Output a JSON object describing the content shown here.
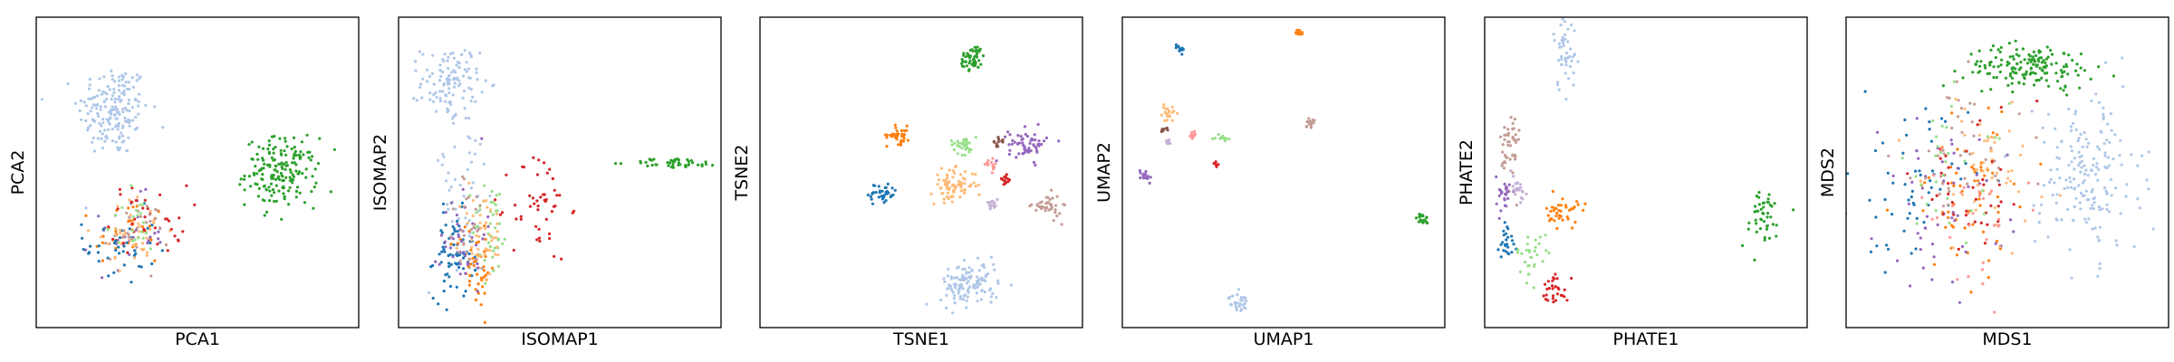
{
  "palette": {
    "blue": "#1f77b4",
    "light_blue": "#aec7e8",
    "orange": "#ff7f0e",
    "light_orange": "#ffbb78",
    "green": "#2ca02c",
    "light_green": "#98df8a",
    "red": "#d62728",
    "pink": "#ff9896",
    "purple": "#9467bd",
    "lavender": "#c5b0d5",
    "brown": "#8c564b",
    "rose": "#c49c94"
  },
  "chart_data": [
    {
      "type": "scatter",
      "method": "PCA",
      "xlabel": "PCA1",
      "ylabel": "PCA2",
      "xlim": [
        0,
        10
      ],
      "ylim": [
        0,
        10
      ],
      "ticks": false,
      "clusters": [
        {
          "color": "light_blue",
          "cx": 2.4,
          "cy": 7.0,
          "sx": 0.55,
          "sy": 0.75,
          "n": 180
        },
        {
          "color": "orange",
          "cx": 2.9,
          "cy": 3.0,
          "sx": 0.55,
          "sy": 0.6,
          "n": 35
        },
        {
          "color": "purple",
          "cx": 2.9,
          "cy": 3.0,
          "sx": 0.55,
          "sy": 0.6,
          "n": 30
        },
        {
          "color": "blue",
          "cx": 2.6,
          "cy": 2.6,
          "sx": 0.55,
          "sy": 0.6,
          "n": 40
        },
        {
          "color": "light_orange",
          "cx": 3.0,
          "cy": 3.1,
          "sx": 0.55,
          "sy": 0.55,
          "n": 40
        },
        {
          "color": "red",
          "cx": 3.5,
          "cy": 3.5,
          "sx": 0.6,
          "sy": 0.55,
          "n": 35
        },
        {
          "color": "rose",
          "cx": 3.1,
          "cy": 3.1,
          "sx": 0.5,
          "sy": 0.5,
          "n": 25
        },
        {
          "color": "light_green",
          "cx": 3.0,
          "cy": 3.3,
          "sx": 0.45,
          "sy": 0.5,
          "n": 20
        },
        {
          "color": "green",
          "cx": 7.6,
          "cy": 5.0,
          "sx": 0.55,
          "sy": 0.55,
          "n": 180
        }
      ]
    },
    {
      "type": "scatter",
      "method": "ISOMAP",
      "xlabel": "ISOMAP1",
      "ylabel": "ISOMAP2",
      "xlim": [
        0,
        10
      ],
      "ylim": [
        0,
        10
      ],
      "ticks": false,
      "clusters": [
        {
          "color": "light_blue",
          "cx": 1.6,
          "cy": 7.9,
          "sx": 0.45,
          "sy": 0.6,
          "n": 110
        },
        {
          "color": "light_blue",
          "cx": 2.0,
          "cy": 4.5,
          "sx": 0.6,
          "sy": 1.6,
          "n": 50
        },
        {
          "color": "blue",
          "cx": 1.7,
          "cy": 2.3,
          "sx": 0.3,
          "sy": 0.7,
          "n": 70
        },
        {
          "color": "orange",
          "cx": 2.4,
          "cy": 2.0,
          "sx": 0.3,
          "sy": 0.7,
          "n": 50
        },
        {
          "color": "purple",
          "cx": 2.0,
          "cy": 3.0,
          "sx": 0.35,
          "sy": 0.9,
          "n": 40
        },
        {
          "color": "light_green",
          "cx": 2.9,
          "cy": 3.2,
          "sx": 0.3,
          "sy": 0.8,
          "n": 40
        },
        {
          "color": "red",
          "cx": 4.4,
          "cy": 3.9,
          "sx": 0.45,
          "sy": 0.9,
          "n": 50
        },
        {
          "color": "light_orange",
          "cx": 2.6,
          "cy": 3.0,
          "sx": 0.35,
          "sy": 0.8,
          "n": 40
        },
        {
          "color": "rose",
          "cx": 2.2,
          "cy": 3.2,
          "sx": 0.35,
          "sy": 0.8,
          "n": 25
        },
        {
          "color": "green",
          "cx": 8.6,
          "cy": 5.3,
          "sx": 0.7,
          "sy": 0.08,
          "n": 45
        }
      ]
    },
    {
      "type": "scatter",
      "method": "TSNE",
      "xlabel": "TSNE1",
      "ylabel": "TSNE2",
      "xlim": [
        0,
        10
      ],
      "ylim": [
        0,
        10
      ],
      "ticks": false,
      "clusters": [
        {
          "color": "green",
          "cx": 6.6,
          "cy": 8.7,
          "sx": 0.2,
          "sy": 0.2,
          "n": 50
        },
        {
          "color": "orange",
          "cx": 4.3,
          "cy": 6.2,
          "sx": 0.18,
          "sy": 0.15,
          "n": 35
        },
        {
          "color": "light_green",
          "cx": 6.3,
          "cy": 5.9,
          "sx": 0.2,
          "sy": 0.15,
          "n": 35
        },
        {
          "color": "brown",
          "cx": 7.4,
          "cy": 6.0,
          "sx": 0.08,
          "sy": 0.08,
          "n": 12
        },
        {
          "color": "purple",
          "cx": 8.3,
          "cy": 5.9,
          "sx": 0.3,
          "sy": 0.25,
          "n": 60
        },
        {
          "color": "light_orange",
          "cx": 6.0,
          "cy": 4.6,
          "sx": 0.35,
          "sy": 0.25,
          "n": 80
        },
        {
          "color": "pink",
          "cx": 7.2,
          "cy": 5.2,
          "sx": 0.1,
          "sy": 0.1,
          "n": 15
        },
        {
          "color": "red",
          "cx": 7.6,
          "cy": 4.8,
          "sx": 0.09,
          "sy": 0.08,
          "n": 15
        },
        {
          "color": "blue",
          "cx": 3.8,
          "cy": 4.3,
          "sx": 0.22,
          "sy": 0.18,
          "n": 40
        },
        {
          "color": "lavender",
          "cx": 7.2,
          "cy": 4.0,
          "sx": 0.1,
          "sy": 0.1,
          "n": 15
        },
        {
          "color": "rose",
          "cx": 8.9,
          "cy": 3.9,
          "sx": 0.22,
          "sy": 0.2,
          "n": 40
        },
        {
          "color": "light_blue",
          "cx": 6.5,
          "cy": 1.4,
          "sx": 0.45,
          "sy": 0.35,
          "n": 120
        }
      ]
    },
    {
      "type": "scatter",
      "method": "UMAP",
      "xlabel": "UMAP1",
      "ylabel": "UMAP2",
      "xlim": [
        0,
        10
      ],
      "ylim": [
        0,
        10
      ],
      "ticks": false,
      "clusters": [
        {
          "color": "orange",
          "cx": 5.5,
          "cy": 9.5,
          "sx": 0.06,
          "sy": 0.06,
          "n": 12
        },
        {
          "color": "blue",
          "cx": 1.8,
          "cy": 9.0,
          "sx": 0.08,
          "sy": 0.08,
          "n": 15
        },
        {
          "color": "light_orange",
          "cx": 1.4,
          "cy": 6.9,
          "sx": 0.12,
          "sy": 0.12,
          "n": 20
        },
        {
          "color": "rose",
          "cx": 5.8,
          "cy": 6.6,
          "sx": 0.08,
          "sy": 0.08,
          "n": 15
        },
        {
          "color": "brown",
          "cx": 1.3,
          "cy": 6.4,
          "sx": 0.05,
          "sy": 0.05,
          "n": 8
        },
        {
          "color": "lavender",
          "cx": 1.4,
          "cy": 6.0,
          "sx": 0.05,
          "sy": 0.05,
          "n": 8
        },
        {
          "color": "pink",
          "cx": 2.2,
          "cy": 6.2,
          "sx": 0.06,
          "sy": 0.05,
          "n": 10
        },
        {
          "color": "light_green",
          "cx": 3.1,
          "cy": 6.1,
          "sx": 0.1,
          "sy": 0.05,
          "n": 15
        },
        {
          "color": "red",
          "cx": 2.9,
          "cy": 5.3,
          "sx": 0.03,
          "sy": 0.05,
          "n": 6
        },
        {
          "color": "purple",
          "cx": 0.7,
          "cy": 4.9,
          "sx": 0.1,
          "sy": 0.1,
          "n": 18
        },
        {
          "color": "green",
          "cx": 9.3,
          "cy": 3.5,
          "sx": 0.09,
          "sy": 0.09,
          "n": 18
        },
        {
          "color": "light_blue",
          "cx": 3.6,
          "cy": 0.8,
          "sx": 0.15,
          "sy": 0.15,
          "n": 30
        }
      ]
    },
    {
      "type": "scatter",
      "method": "PHATE",
      "xlabel": "PHATE1",
      "ylabel": "PHATE2",
      "xlim": [
        0,
        10
      ],
      "ylim": [
        0,
        10
      ],
      "ticks": false,
      "clusters": [
        {
          "color": "light_blue",
          "cx": 2.5,
          "cy": 9.0,
          "sx": 0.18,
          "sy": 0.7,
          "n": 50
        },
        {
          "color": "rose",
          "cx": 0.8,
          "cy": 5.8,
          "sx": 0.15,
          "sy": 0.7,
          "n": 45
        },
        {
          "color": "purple",
          "cx": 0.6,
          "cy": 4.3,
          "sx": 0.12,
          "sy": 0.3,
          "n": 25
        },
        {
          "color": "orange",
          "cx": 2.4,
          "cy": 3.7,
          "sx": 0.25,
          "sy": 0.25,
          "n": 40
        },
        {
          "color": "blue",
          "cx": 0.7,
          "cy": 2.8,
          "sx": 0.12,
          "sy": 0.35,
          "n": 25
        },
        {
          "color": "light_green",
          "cx": 1.5,
          "cy": 2.3,
          "sx": 0.25,
          "sy": 0.35,
          "n": 30
        },
        {
          "color": "red",
          "cx": 2.2,
          "cy": 1.3,
          "sx": 0.2,
          "sy": 0.25,
          "n": 30
        },
        {
          "color": "lavender",
          "cx": 1.0,
          "cy": 4.5,
          "sx": 0.15,
          "sy": 0.3,
          "n": 20
        },
        {
          "color": "green",
          "cx": 8.6,
          "cy": 3.5,
          "sx": 0.35,
          "sy": 0.5,
          "n": 45
        }
      ]
    },
    {
      "type": "scatter",
      "method": "MDS",
      "xlabel": "MDS1",
      "ylabel": "MDS2",
      "xlim": [
        0,
        10
      ],
      "ylim": [
        0,
        10
      ],
      "ticks": false,
      "clusters": [
        {
          "color": "green",
          "cx": 5.7,
          "cy": 8.4,
          "sx": 1.0,
          "sy": 0.35,
          "n": 160
        },
        {
          "color": "light_blue",
          "cx": 7.5,
          "cy": 4.9,
          "sx": 0.8,
          "sy": 1.3,
          "n": 180
        },
        {
          "color": "blue",
          "cx": 2.0,
          "cy": 4.5,
          "sx": 0.9,
          "sy": 1.3,
          "n": 60
        },
        {
          "color": "orange",
          "cx": 3.8,
          "cy": 4.3,
          "sx": 1.0,
          "sy": 1.3,
          "n": 60
        },
        {
          "color": "purple",
          "cx": 3.0,
          "cy": 4.0,
          "sx": 1.0,
          "sy": 1.3,
          "n": 50
        },
        {
          "color": "light_orange",
          "cx": 4.4,
          "cy": 5.0,
          "sx": 1.0,
          "sy": 1.3,
          "n": 55
        },
        {
          "color": "rose",
          "cx": 3.5,
          "cy": 5.5,
          "sx": 1.0,
          "sy": 1.2,
          "n": 40
        },
        {
          "color": "red",
          "cx": 4.0,
          "cy": 4.6,
          "sx": 1.0,
          "sy": 1.2,
          "n": 40
        },
        {
          "color": "light_green",
          "cx": 3.2,
          "cy": 5.1,
          "sx": 0.9,
          "sy": 1.1,
          "n": 30
        },
        {
          "color": "pink",
          "cx": 3.9,
          "cy": 3.6,
          "sx": 0.8,
          "sy": 1.0,
          "n": 30
        }
      ]
    }
  ]
}
